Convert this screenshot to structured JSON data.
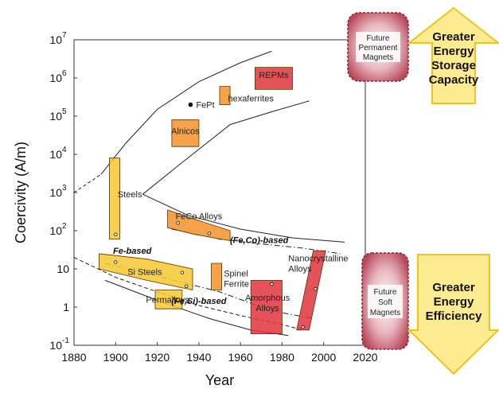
{
  "chart_data": {
    "type": "scatter",
    "title": "",
    "xlabel": "Year",
    "ylabel": "Coercivity (A/m)",
    "xlim": [
      1880,
      2020
    ],
    "ylim_log10": [
      -1,
      7
    ],
    "x_ticks": [
      "1880",
      "1900",
      "1920",
      "1940",
      "1960",
      "1980",
      "2000",
      "2020"
    ],
    "y_ticks": [
      {
        "base": "10",
        "exp": "7"
      },
      {
        "base": "10",
        "exp": "6"
      },
      {
        "base": "10",
        "exp": "5"
      },
      {
        "base": "10",
        "exp": "4"
      },
      {
        "base": "10",
        "exp": "3"
      },
      {
        "base": "10",
        "exp": "2"
      },
      {
        "base": "10",
        "exp": ""
      },
      {
        "base": "1",
        "exp": ""
      },
      {
        "base": "10",
        "exp": "-1"
      }
    ],
    "material_regions": [
      {
        "label": "REPMs",
        "color": "#e0343c",
        "poly": [
          [
            1967,
            1900000.0
          ],
          [
            1985,
            1900000.0
          ],
          [
            1985,
            500000.0
          ],
          [
            1967,
            500000.0
          ]
        ]
      },
      {
        "label": "hexaferrites",
        "color": "#f4922c",
        "poly": [
          [
            1950,
            600000.0
          ],
          [
            1955,
            600000.0
          ],
          [
            1955,
            200000.0
          ],
          [
            1950,
            200000.0
          ]
        ]
      },
      {
        "label": "Alnicos",
        "color": "#f4922c",
        "poly": [
          [
            1927,
            80000.0
          ],
          [
            1940,
            80000.0
          ],
          [
            1940,
            16000.0
          ],
          [
            1927,
            16000.0
          ]
        ]
      },
      {
        "label": "Steels",
        "color": "#f7c831",
        "poly": [
          [
            1897,
            8000.0
          ],
          [
            1902,
            8000.0
          ],
          [
            1902,
            60
          ],
          [
            1897,
            60
          ]
        ]
      },
      {
        "label": "FeCo Alloys",
        "color": "#f4922c",
        "poly": [
          [
            1925,
            350
          ],
          [
            1938,
            200
          ],
          [
            1955,
            100
          ],
          [
            1955,
            55
          ],
          [
            1938,
            80
          ],
          [
            1925,
            120
          ]
        ]
      },
      {
        "label": "Spinel Ferrite",
        "color": "#f4922c",
        "poly": [
          [
            1946,
            14
          ],
          [
            1951,
            14
          ],
          [
            1951,
            2.8
          ],
          [
            1946,
            2.8
          ]
        ]
      },
      {
        "label": "Si Steels",
        "color": "#f7c831",
        "poly": [
          [
            1892,
            25
          ],
          [
            1915,
            18
          ],
          [
            1937,
            10
          ],
          [
            1937,
            2.8
          ],
          [
            1915,
            5
          ],
          [
            1892,
            10
          ]
        ]
      },
      {
        "label": "Permalloys",
        "color": "#f7c831",
        "poly": [
          [
            1919,
            2.8
          ],
          [
            1932,
            2.8
          ],
          [
            1932,
            0.9
          ],
          [
            1919,
            0.9
          ]
        ]
      },
      {
        "label": "Amorphous Alloys",
        "color": "#e0343c",
        "poly": [
          [
            1965,
            5
          ],
          [
            1980,
            5
          ],
          [
            1980,
            0.2
          ],
          [
            1965,
            0.2
          ]
        ]
      },
      {
        "label": "Nanocrystalline Alloys",
        "color": "#e0343c",
        "poly": [
          [
            1995,
            30
          ],
          [
            2001,
            30
          ],
          [
            1993,
            0.25
          ],
          [
            1987,
            0.25
          ]
        ]
      }
    ],
    "points": [
      {
        "label": "FePt",
        "x": 1936,
        "y": 200000.0
      },
      {
        "x": 1900,
        "y": 80
      },
      {
        "x": 1930,
        "y": 160
      },
      {
        "x": 1945,
        "y": 85
      },
      {
        "x": 1900,
        "y": 15
      },
      {
        "x": 1932,
        "y": 8
      },
      {
        "x": 1934,
        "y": 3.5
      },
      {
        "x": 1975,
        "y": 4
      },
      {
        "x": 1996,
        "y": 3
      },
      {
        "x": 1990,
        "y": 0.3
      }
    ],
    "trend_lines": [
      {
        "label": "Fe-based",
        "style": "dashed",
        "points": [
          [
            1880,
            20
          ],
          [
            1900,
            6
          ],
          [
            1920,
            2.5
          ],
          [
            1940,
            1.1
          ],
          [
            1960,
            0.6
          ],
          [
            1980,
            0.35
          ],
          [
            1990,
            0.25
          ]
        ]
      },
      {
        "label": "(Fe,Co)-based",
        "style": "dashdot",
        "points": [
          [
            1927,
            110
          ],
          [
            1950,
            60
          ],
          [
            1970,
            45
          ],
          [
            1990,
            35
          ],
          [
            2008,
            25
          ]
        ]
      },
      {
        "label": "(Fe,Si)-based",
        "style": "dashdot",
        "points": [
          [
            1895,
            14
          ],
          [
            1920,
            6.5
          ],
          [
            1950,
            2.5
          ],
          [
            1975,
            0.8
          ],
          [
            1995,
            0.5
          ]
        ]
      }
    ],
    "envelope": [
      {
        "style": "solid",
        "points": [
          [
            1893,
            3000.0
          ],
          [
            1905,
            20000.0
          ],
          [
            1920,
            150000.0
          ],
          [
            1940,
            800000.0
          ],
          [
            1960,
            2500000.0
          ],
          [
            1975,
            5000000.0
          ]
        ]
      },
      {
        "style": "dashed",
        "points": [
          [
            1880,
            1000.0
          ],
          [
            1893,
            3000.0
          ]
        ]
      },
      {
        "style": "solid",
        "points": [
          [
            1913,
            900
          ],
          [
            1930,
            5000.0
          ],
          [
            1955,
            60000.0
          ],
          [
            1975,
            130000.0
          ],
          [
            1993,
            250000.0
          ]
        ]
      },
      {
        "style": "solid",
        "points": [
          [
            1913,
            900
          ],
          [
            1935,
            250
          ],
          [
            1960,
            110
          ],
          [
            1985,
            65
          ],
          [
            2010,
            50
          ]
        ]
      },
      {
        "style": "solid",
        "points": [
          [
            1895,
            5
          ],
          [
            1920,
            1.5
          ],
          [
            1945,
            0.5
          ],
          [
            1965,
            0.25
          ],
          [
            1983,
            0.18
          ]
        ]
      }
    ]
  },
  "future_boxes": {
    "permanent": "Future Permanent Magnets",
    "soft": "Future Soft Magnets"
  },
  "arrows": {
    "up": "Greater Energy Storage Capacity",
    "down": "Greater Energy Efficiency"
  },
  "colors": {
    "arrow_fill": "#fdeb92",
    "arrow_stroke": "#f0c31c",
    "future_fill": "#b7485a"
  }
}
